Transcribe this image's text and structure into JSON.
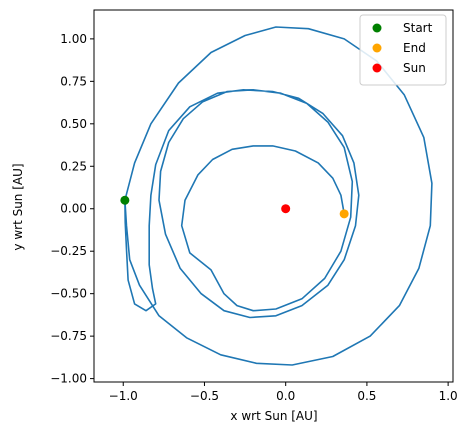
{
  "chart_data": {
    "type": "scatter",
    "title": "",
    "xlabel": "x wrt Sun [AU]",
    "ylabel": "y wrt Sun [AU]",
    "xlim": [
      -1.18,
      1.03
    ],
    "ylim": [
      -1.02,
      1.17
    ],
    "xticks": [
      -1.0,
      -0.5,
      0.0,
      0.5,
      1.0
    ],
    "xtick_labels": [
      "−1.0",
      "−0.5",
      "0.0",
      "0.5",
      "1.0"
    ],
    "yticks": [
      -1.0,
      -0.75,
      -0.5,
      -0.25,
      0.0,
      0.25,
      0.5,
      0.75,
      1.0
    ],
    "ytick_labels": [
      "−1.00",
      "−0.75",
      "−0.50",
      "−0.25",
      "0.00",
      "0.25",
      "0.50",
      "0.75",
      "1.00"
    ],
    "grid": false,
    "legend_position": "top-right",
    "trajectory": {
      "color": "#1f77b4",
      "points": [
        [
          -0.99,
          0.05
        ],
        [
          -0.988,
          -0.08
        ],
        [
          -0.98,
          -0.24
        ],
        [
          -0.97,
          -0.42
        ],
        [
          -0.93,
          -0.56
        ],
        [
          -0.86,
          -0.6
        ],
        [
          -0.8,
          -0.56
        ],
        [
          -0.82,
          -0.47
        ],
        [
          -0.84,
          -0.33
        ],
        [
          -0.84,
          -0.1
        ],
        [
          -0.83,
          0.08
        ],
        [
          -0.8,
          0.26
        ],
        [
          -0.72,
          0.46
        ],
        [
          -0.59,
          0.6
        ],
        [
          -0.42,
          0.68
        ],
        [
          -0.26,
          0.7
        ],
        [
          -0.08,
          0.69
        ],
        [
          0.08,
          0.65
        ],
        [
          0.23,
          0.56
        ],
        [
          0.35,
          0.43
        ],
        [
          0.42,
          0.27
        ],
        [
          0.45,
          0.08
        ],
        [
          0.43,
          -0.1
        ],
        [
          0.36,
          -0.3
        ],
        [
          0.26,
          -0.45
        ],
        [
          0.1,
          -0.57
        ],
        [
          -0.06,
          -0.63
        ],
        [
          -0.22,
          -0.64
        ],
        [
          -0.38,
          -0.6
        ],
        [
          -0.52,
          -0.5
        ],
        [
          -0.65,
          -0.35
        ],
        [
          -0.74,
          -0.15
        ],
        [
          -0.78,
          0.05
        ],
        [
          -0.77,
          0.22
        ],
        [
          -0.72,
          0.39
        ],
        [
          -0.63,
          0.53
        ],
        [
          -0.51,
          0.63
        ],
        [
          -0.36,
          0.69
        ],
        [
          -0.2,
          0.7
        ],
        [
          -0.03,
          0.68
        ],
        [
          0.13,
          0.62
        ],
        [
          0.26,
          0.51
        ],
        [
          0.36,
          0.36
        ],
        [
          0.41,
          0.16
        ],
        [
          0.4,
          -0.05
        ],
        [
          0.34,
          -0.25
        ],
        [
          0.24,
          -0.41
        ],
        [
          0.1,
          -0.53
        ],
        [
          -0.06,
          -0.59
        ],
        [
          -0.2,
          -0.6
        ],
        [
          -0.3,
          -0.57
        ],
        [
          -0.38,
          -0.5
        ],
        [
          -0.46,
          -0.36
        ],
        [
          -0.59,
          -0.26
        ],
        [
          -0.64,
          -0.1
        ],
        [
          -0.62,
          0.05
        ],
        [
          -0.54,
          0.2
        ],
        [
          -0.45,
          0.29
        ],
        [
          -0.33,
          0.35
        ],
        [
          -0.2,
          0.37
        ],
        [
          -0.08,
          0.37
        ],
        [
          0.06,
          0.34
        ],
        [
          0.2,
          0.27
        ],
        [
          0.29,
          0.18
        ],
        [
          0.34,
          0.08
        ],
        [
          0.36,
          -0.03
        ]
      ],
      "outer_loop": [
        [
          -0.99,
          0.05
        ],
        [
          -0.93,
          0.27
        ],
        [
          -0.83,
          0.5
        ],
        [
          -0.66,
          0.74
        ],
        [
          -0.46,
          0.92
        ],
        [
          -0.25,
          1.02
        ],
        [
          -0.06,
          1.07
        ],
        [
          0.14,
          1.06
        ],
        [
          0.36,
          1.0
        ],
        [
          0.56,
          0.87
        ],
        [
          0.73,
          0.67
        ],
        [
          0.85,
          0.42
        ],
        [
          0.9,
          0.15
        ],
        [
          0.89,
          -0.1
        ],
        [
          0.82,
          -0.35
        ],
        [
          0.7,
          -0.57
        ],
        [
          0.52,
          -0.75
        ],
        [
          0.29,
          -0.87
        ],
        [
          0.04,
          -0.92
        ],
        [
          -0.18,
          -0.91
        ],
        [
          -0.4,
          -0.86
        ],
        [
          -0.61,
          -0.76
        ],
        [
          -0.78,
          -0.63
        ],
        [
          -0.9,
          -0.45
        ],
        [
          -0.96,
          -0.3
        ],
        [
          -0.98,
          -0.1
        ],
        [
          -0.99,
          0.05
        ]
      ]
    },
    "series": [
      {
        "name": "Start",
        "color": "#008000",
        "x": -0.99,
        "y": 0.05
      },
      {
        "name": "End",
        "color": "#ffa500",
        "x": 0.36,
        "y": -0.03
      },
      {
        "name": "Sun",
        "color": "#ff0000",
        "x": 0.0,
        "y": 0.0
      }
    ]
  }
}
